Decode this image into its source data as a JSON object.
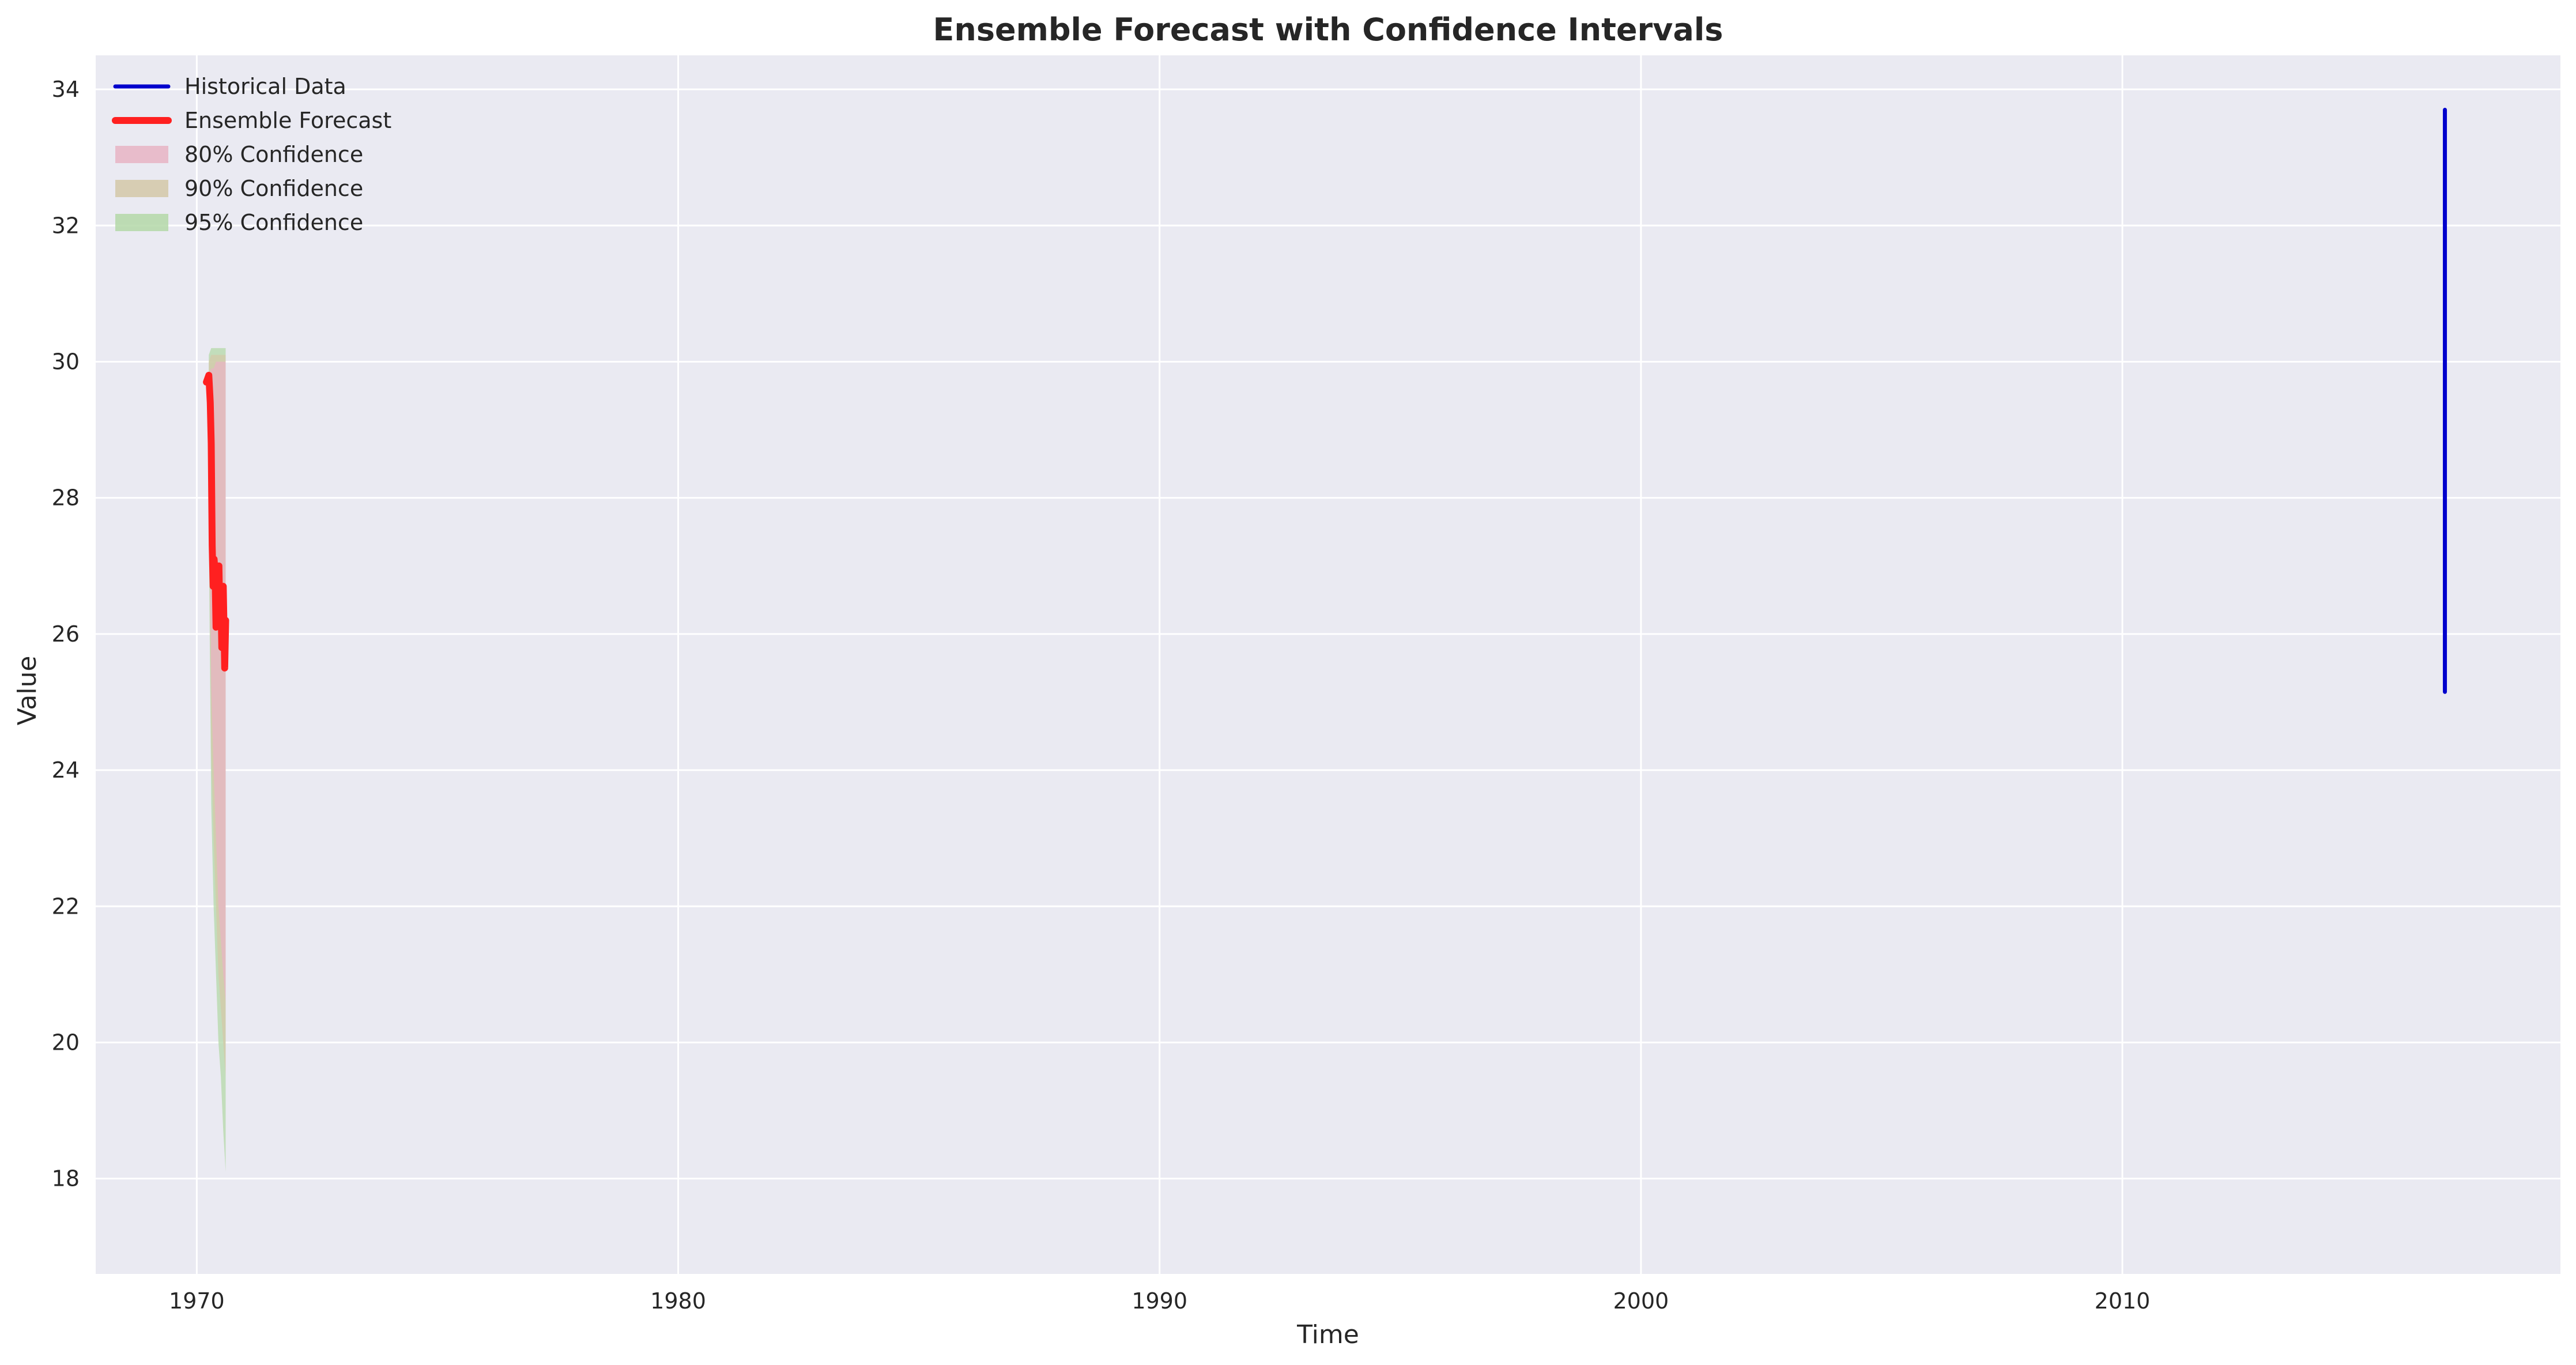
{
  "chart_data": {
    "type": "line",
    "title": "Ensemble Forecast with Confidence Intervals",
    "xlabel": "Time",
    "ylabel": "Value",
    "xlim": [
      1967.9,
      2019.1
    ],
    "ylim": [
      16.6,
      34.5
    ],
    "xticks": [
      1970,
      1980,
      1990,
      2000,
      2010
    ],
    "yticks": [
      18,
      20,
      22,
      24,
      26,
      28,
      30,
      32,
      34
    ],
    "grid": true,
    "legend_position": "top-left",
    "colors": {
      "background": "#eaeaf2",
      "grid": "#ffffff",
      "historical": "#0000cc",
      "forecast": "#ff2020",
      "ci80": "#e8b4c4",
      "ci90": "#d4c8a8",
      "ci95": "#b4d8a8"
    },
    "series": [
      {
        "name": "Historical Data",
        "kind": "line",
        "x": [
          2016.7,
          2016.7,
          2016.7,
          2016.7,
          2016.7,
          2016.7,
          2016.7,
          2016.7
        ],
        "y": [
          33.7,
          32.5,
          30.0,
          29.3,
          28.0,
          26.5,
          26.0,
          25.15
        ]
      },
      {
        "name": "Ensemble Forecast",
        "kind": "line",
        "x": [
          1970.2,
          1970.25,
          1970.28,
          1970.3,
          1970.32,
          1970.34,
          1970.36,
          1970.38,
          1970.4,
          1970.42,
          1970.44,
          1970.46,
          1970.48,
          1970.5,
          1970.52,
          1970.55,
          1970.58,
          1970.6
        ],
        "y": [
          29.7,
          29.8,
          29.4,
          28.8,
          27.3,
          26.7,
          27.1,
          26.9,
          26.1,
          27.0,
          26.4,
          27.0,
          26.2,
          26.6,
          25.8,
          26.7,
          25.5,
          26.2
        ]
      }
    ],
    "bands": [
      {
        "name": "80% Confidence",
        "x": [
          1970.25,
          1970.3,
          1970.35,
          1970.4,
          1970.45,
          1970.5,
          1970.55,
          1970.6
        ],
        "lower": [
          28.5,
          25.2,
          24.0,
          23.0,
          22.0,
          21.5,
          21.0,
          20.6
        ],
        "upper": [
          29.8,
          29.9,
          29.9,
          30.0,
          30.0,
          30.0,
          30.0,
          30.0
        ]
      },
      {
        "name": "90% Confidence",
        "x": [
          1970.25,
          1970.3,
          1970.35,
          1970.4,
          1970.45,
          1970.5,
          1970.55,
          1970.6
        ],
        "lower": [
          28.0,
          24.3,
          23.0,
          22.0,
          21.0,
          20.5,
          20.0,
          19.5
        ],
        "upper": [
          30.0,
          30.1,
          30.1,
          30.1,
          30.1,
          30.1,
          30.1,
          30.1
        ]
      },
      {
        "name": "95% Confidence",
        "x": [
          1970.25,
          1970.3,
          1970.35,
          1970.4,
          1970.45,
          1970.5,
          1970.55,
          1970.6
        ],
        "lower": [
          27.5,
          23.5,
          22.0,
          21.0,
          20.0,
          19.5,
          18.7,
          18.1
        ],
        "upper": [
          30.1,
          30.2,
          30.2,
          30.2,
          30.2,
          30.2,
          30.2,
          30.2
        ]
      }
    ]
  }
}
